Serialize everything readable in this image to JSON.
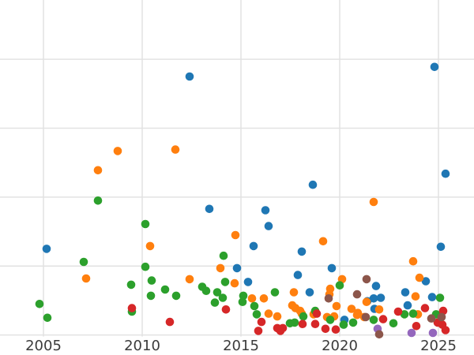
{
  "chart_data": {
    "type": "scatter",
    "title": "",
    "xlabel": "",
    "ylabel": "",
    "grid": true,
    "legend": false,
    "background_color": "#ffffff",
    "gridline_color": "#e2e2e2",
    "tick_label_color": "#3b3b3b",
    "marker_diameter_px": 10.6,
    "x_range": [
      2002.8,
      2026.8
    ],
    "y_range": [
      -0.29,
      4.86
    ],
    "x_ticks": [
      2005,
      2010,
      2015,
      2020,
      2025
    ],
    "x_tick_labels": [
      "2005",
      "2010",
      "2015",
      "2020",
      "2025"
    ],
    "y_gridlines": [
      0,
      1,
      2,
      3,
      4
    ],
    "y_axis_labels_visible": false,
    "series": [
      {
        "name": "blue",
        "color": "#1f77b4",
        "points": [
          [
            2012.4,
            3.75
          ],
          [
            2024.8,
            3.89
          ],
          [
            2025.36,
            2.34
          ],
          [
            2018.64,
            2.18
          ],
          [
            2013.4,
            1.83
          ],
          [
            2016.24,
            1.81
          ],
          [
            2016.4,
            1.58
          ],
          [
            2015.64,
            1.29
          ],
          [
            2005.16,
            1.25
          ],
          [
            2025.12,
            1.28
          ],
          [
            2018.08,
            1.21
          ],
          [
            2014.8,
            0.97
          ],
          [
            2019.6,
            0.97
          ],
          [
            2017.88,
            0.87
          ],
          [
            2015.36,
            0.77
          ],
          [
            2024.36,
            0.78
          ],
          [
            2021.84,
            0.71
          ],
          [
            2018.48,
            0.62
          ],
          [
            2023.32,
            0.62
          ],
          [
            2021.72,
            0.53
          ],
          [
            2022.08,
            0.54
          ],
          [
            2024.68,
            0.55
          ],
          [
            2021.4,
            0.49
          ],
          [
            2023.44,
            0.43
          ],
          [
            2021.76,
            0.38
          ],
          [
            2020.24,
            0.22
          ]
        ]
      },
      {
        "name": "orange",
        "color": "#ff7f0e",
        "points": [
          [
            2008.76,
            2.67
          ],
          [
            2011.68,
            2.69
          ],
          [
            2007.76,
            2.39
          ],
          [
            2021.72,
            1.93
          ],
          [
            2014.72,
            1.45
          ],
          [
            2019.16,
            1.36
          ],
          [
            2010.4,
            1.29
          ],
          [
            2023.72,
            1.07
          ],
          [
            2013.96,
            0.97
          ],
          [
            2007.16,
            0.82
          ],
          [
            2012.4,
            0.81
          ],
          [
            2014.68,
            0.75
          ],
          [
            2020.12,
            0.81
          ],
          [
            2024.04,
            0.83
          ],
          [
            2019.52,
            0.67
          ],
          [
            2019.48,
            0.59
          ],
          [
            2017.68,
            0.62
          ],
          [
            2023.84,
            0.56
          ],
          [
            2015.56,
            0.53
          ],
          [
            2016.16,
            0.53
          ],
          [
            2021.36,
            0.48
          ],
          [
            2017.6,
            0.43
          ],
          [
            2017.76,
            0.39
          ],
          [
            2018.0,
            0.35
          ],
          [
            2019.84,
            0.42
          ],
          [
            2020.6,
            0.38
          ],
          [
            2020.92,
            0.32
          ],
          [
            2021.24,
            0.26
          ],
          [
            2022.0,
            0.37
          ],
          [
            2023.96,
            0.3
          ],
          [
            2016.4,
            0.31
          ],
          [
            2016.84,
            0.27
          ],
          [
            2018.08,
            0.31
          ],
          [
            2018.68,
            0.3
          ],
          [
            2019.36,
            0.26
          ],
          [
            2019.72,
            0.27
          ],
          [
            2020.88,
            0.29
          ]
        ]
      },
      {
        "name": "green",
        "color": "#2ca02c",
        "points": [
          [
            2007.76,
            1.95
          ],
          [
            2010.16,
            1.61
          ],
          [
            2007.04,
            1.06
          ],
          [
            2010.16,
            0.99
          ],
          [
            2014.12,
            1.15
          ],
          [
            2004.8,
            0.45
          ],
          [
            2005.2,
            0.25
          ],
          [
            2009.44,
            0.73
          ],
          [
            2010.48,
            0.79
          ],
          [
            2010.44,
            0.57
          ],
          [
            2009.48,
            0.34
          ],
          [
            2011.16,
            0.66
          ],
          [
            2011.72,
            0.57
          ],
          [
            2013.04,
            0.7
          ],
          [
            2013.24,
            0.64
          ],
          [
            2013.8,
            0.62
          ],
          [
            2014.08,
            0.54
          ],
          [
            2013.68,
            0.47
          ],
          [
            2014.2,
            0.77
          ],
          [
            2015.12,
            0.57
          ],
          [
            2015.08,
            0.48
          ],
          [
            2015.68,
            0.42
          ],
          [
            2016.72,
            0.62
          ],
          [
            2015.8,
            0.3
          ],
          [
            2017.48,
            0.17
          ],
          [
            2017.72,
            0.18
          ],
          [
            2018.16,
            0.27
          ],
          [
            2018.76,
            0.35
          ],
          [
            2019.52,
            0.22
          ],
          [
            2020.0,
            0.72
          ],
          [
            2020.2,
            0.15
          ],
          [
            2020.68,
            0.18
          ],
          [
            2021.72,
            0.22
          ],
          [
            2022.72,
            0.17
          ],
          [
            2023.28,
            0.3
          ],
          [
            2023.72,
            0.31
          ],
          [
            2025.08,
            0.54
          ],
          [
            2024.88,
            0.3
          ]
        ]
      },
      {
        "name": "red",
        "color": "#d62728",
        "points": [
          [
            2009.48,
            0.39
          ],
          [
            2011.4,
            0.19
          ],
          [
            2014.24,
            0.37
          ],
          [
            2016.04,
            0.19
          ],
          [
            2015.88,
            0.06
          ],
          [
            2016.84,
            0.1
          ],
          [
            2017.12,
            0.1
          ],
          [
            2017.0,
            0.06
          ],
          [
            2018.12,
            0.16
          ],
          [
            2018.76,
            0.16
          ],
          [
            2018.84,
            0.31
          ],
          [
            2019.28,
            0.09
          ],
          [
            2019.8,
            0.08
          ],
          [
            2022.2,
            0.23
          ],
          [
            2022.96,
            0.34
          ],
          [
            2024.32,
            0.39
          ],
          [
            2023.88,
            0.13
          ],
          [
            2024.96,
            0.18
          ],
          [
            2025.2,
            0.15
          ],
          [
            2025.36,
            0.07
          ],
          [
            2025.24,
            0.35
          ]
        ]
      },
      {
        "name": "purple",
        "color": "#9467bd",
        "points": [
          [
            2021.92,
            0.09
          ],
          [
            2023.64,
            0.03
          ],
          [
            2024.72,
            0.03
          ]
        ]
      },
      {
        "name": "brown",
        "color": "#8c564b",
        "points": [
          [
            2021.36,
            0.81
          ],
          [
            2020.88,
            0.59
          ],
          [
            2019.44,
            0.53
          ],
          [
            2021.32,
            0.26
          ],
          [
            2024.64,
            0.24
          ],
          [
            2025.16,
            0.26
          ],
          [
            2022.0,
            0.01
          ]
        ]
      }
    ]
  }
}
